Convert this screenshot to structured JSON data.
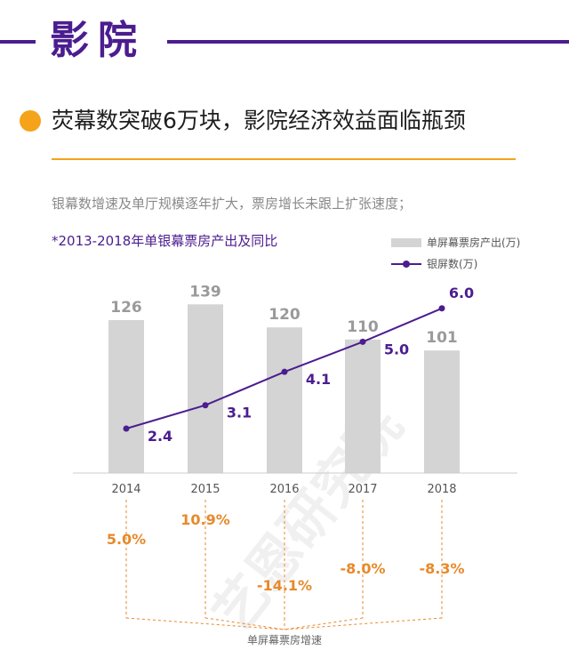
{
  "section": {
    "title": "影院"
  },
  "headline": "荧幕数突破6万块，影院经济效益面临瓶颈",
  "description": "银幕数增速及单厅规模逐年扩大，票房增长未跟上扩张速度；",
  "chart_subtitle": "*2013-2018年单银幕票房产出及同比",
  "legend": {
    "bar": "单屏幕票房产出(万)",
    "line": "银屏数(万)"
  },
  "growth_caption": "单屏幕票房增速",
  "watermark": "艺恩研究院",
  "colors": {
    "purple": "#4b1d8f",
    "orange": "#f5a31a",
    "bar": "#d4d4d4",
    "growth": "#e8892a"
  },
  "chart_data": {
    "type": "bar",
    "categories": [
      "2014",
      "2015",
      "2016",
      "2017",
      "2018"
    ],
    "series": [
      {
        "name": "单屏幕票房产出(万)",
        "type": "bar",
        "values": [
          126,
          139,
          120,
          110,
          101
        ]
      },
      {
        "name": "银屏数(万)",
        "type": "line",
        "values": [
          2.4,
          3.1,
          4.1,
          5.0,
          6.0
        ]
      }
    ],
    "growth": {
      "name": "单屏幕票房增速",
      "values": [
        "5.0%",
        "10.9%",
        "-14.1%",
        "-8.0%",
        "-8.3%"
      ]
    }
  }
}
